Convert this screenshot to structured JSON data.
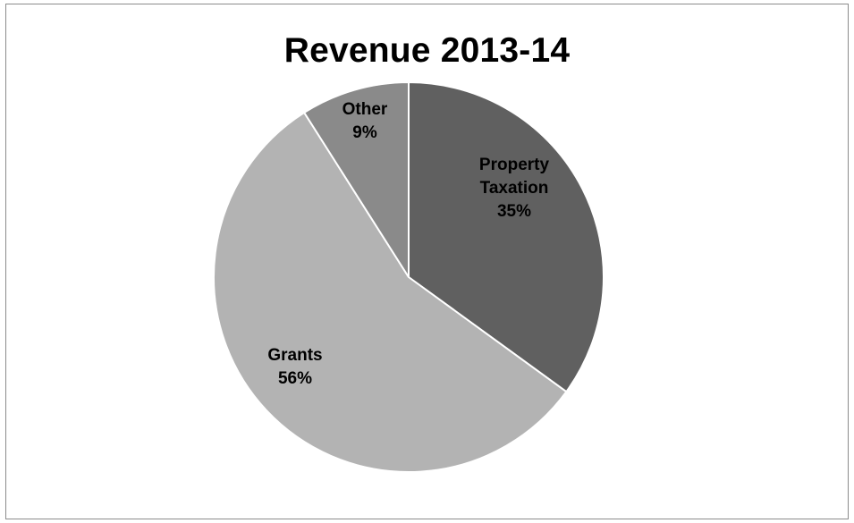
{
  "chart_data": {
    "type": "pie",
    "title": "Revenue 2013-14",
    "slices": [
      {
        "name": "Property Taxation",
        "label_lines": [
          "Property",
          "Taxation"
        ],
        "value": 35,
        "value_label": "35%",
        "color": "#606060"
      },
      {
        "name": "Grants",
        "label_lines": [
          "Grants"
        ],
        "value": 56,
        "value_label": "56%",
        "color": "#b3b3b3"
      },
      {
        "name": "Other",
        "label_lines": [
          "Other"
        ],
        "value": 9,
        "value_label": "9%",
        "color": "#8a8a8a"
      }
    ],
    "start": "12 o'clock",
    "direction": "clockwise",
    "slice_border_color": "#ffffff",
    "legend": "none"
  }
}
